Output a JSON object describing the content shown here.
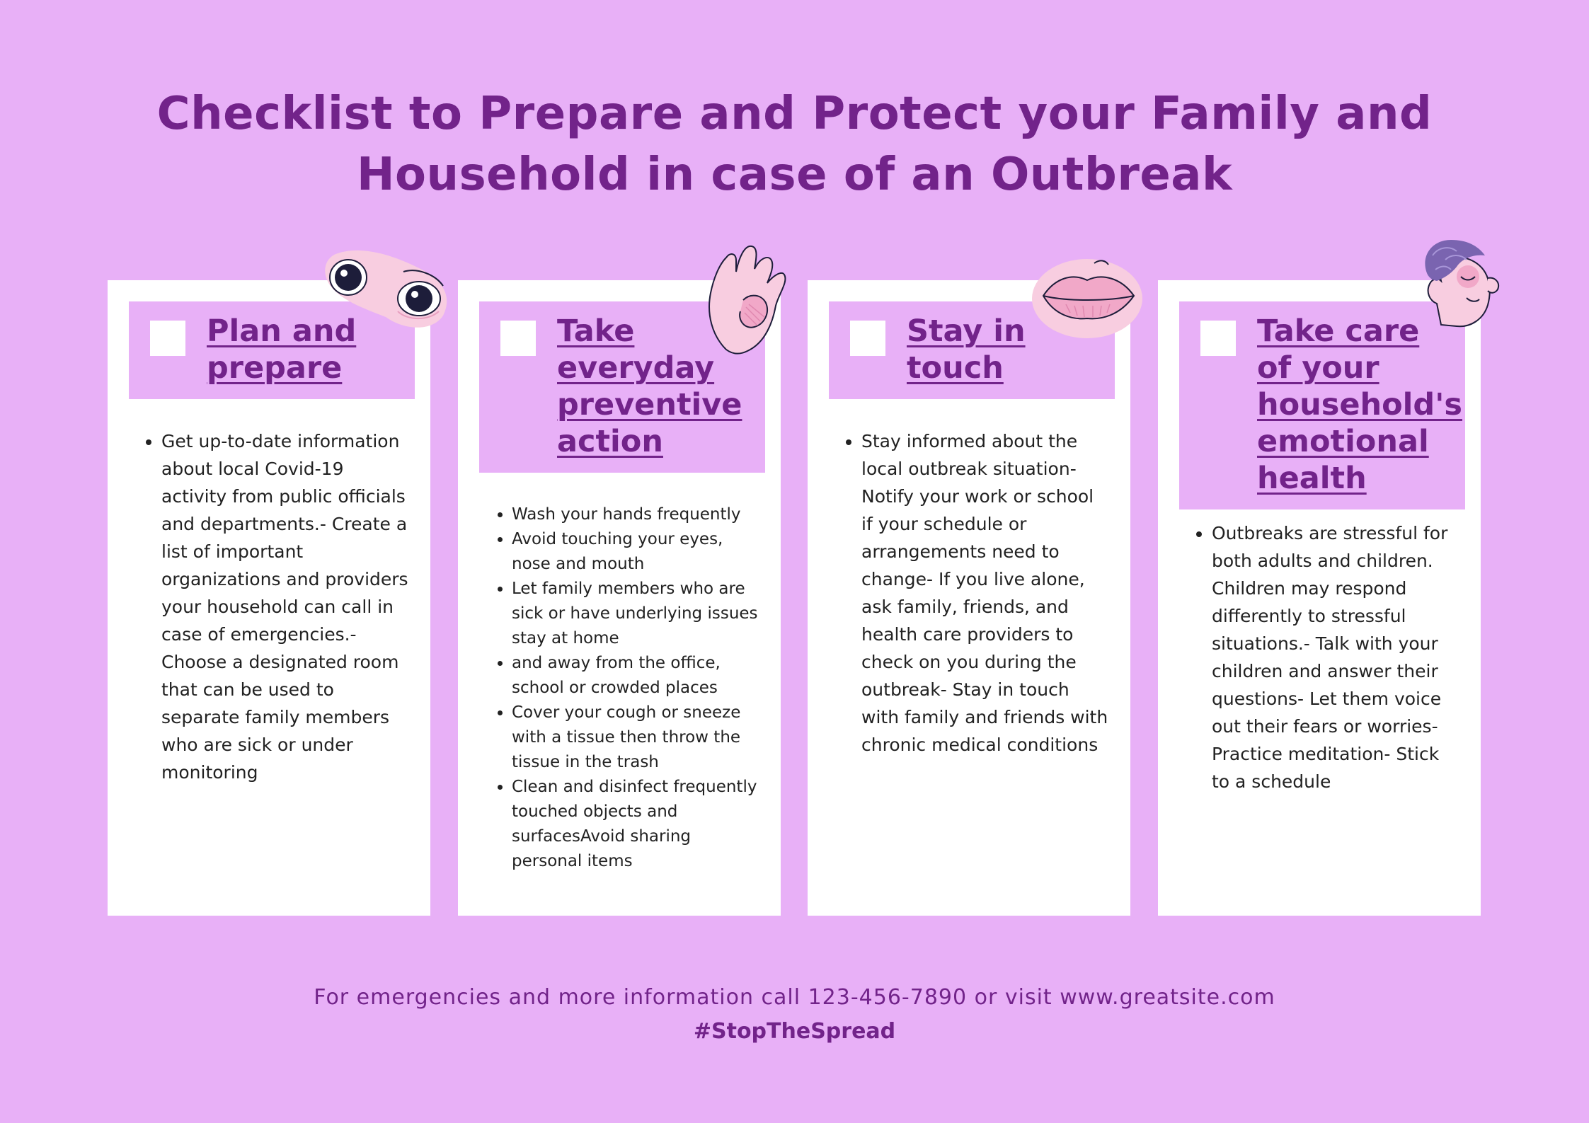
{
  "title": {
    "line1": "Checklist to Prepare and Protect your Family and",
    "line2": "Household in case of an Outbreak"
  },
  "cards": [
    {
      "title": "Plan and prepare",
      "illustration": "eyes-icon",
      "items": [
        "Get up-to-date information about local Covid-19 activity from public officials and departments.- Create a list of important organizations and providers your household can call in case of emergencies.- Choose a designated room that can be used to separate family members who are sick or under monitoring"
      ]
    },
    {
      "title": "Take everyday preventive action",
      "illustration": "hand-icon",
      "items": [
        "Wash your hands frequently",
        "Avoid touching your eyes, nose and mouth",
        "Let family members who are sick or have underlying issues stay at home",
        "and away from the office, school or crowded places",
        "Cover your cough or sneeze with a tissue then throw the tissue in the trash",
        "Clean and disinfect frequently touched objects and surfacesAvoid sharing personal items"
      ]
    },
    {
      "title": "Stay in touch",
      "illustration": "lips-icon",
      "items": [
        "Stay informed about the local outbreak situation- Notify your work or school if your schedule or arrangements need to change- If you live alone, ask family, friends, and health care providers to check on you during the outbreak- Stay in touch with family and friends with chronic medical conditions"
      ]
    },
    {
      "title": "Take care of your household's emotional health",
      "illustration": "face-icon",
      "items": [
        "Outbreaks are stressful for both adults and children. Children may respond differently to stressful situations.- Talk with your children and answer their questions- Let them voice out their fears or worries- Practice meditation- Stick to a schedule"
      ]
    }
  ],
  "footer": {
    "info": "For emergencies and more information call 123-456-7890 or visit www.greatsite.com",
    "hashtag": "#StopTheSpread"
  },
  "colors": {
    "background": "#e8b0f7",
    "accent": "#72238a",
    "card": "#ffffff",
    "illustration_pink": "#f8cde0"
  }
}
